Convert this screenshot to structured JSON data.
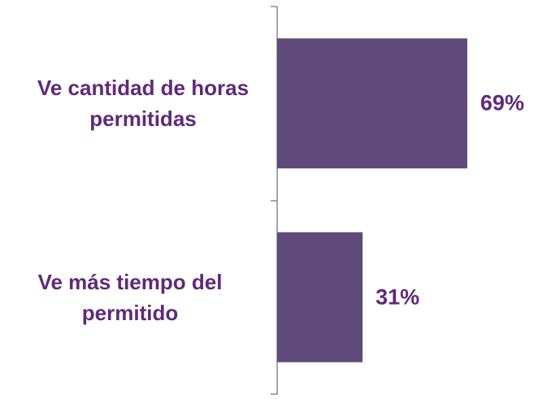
{
  "chart_data": {
    "type": "barh",
    "categories": [
      "Ve cantidad de horas permitidas",
      "Ve más tiempo del permitido"
    ],
    "values": [
      69,
      31
    ],
    "value_labels": [
      "69%",
      "31%"
    ],
    "color": "#604a7b"
  }
}
